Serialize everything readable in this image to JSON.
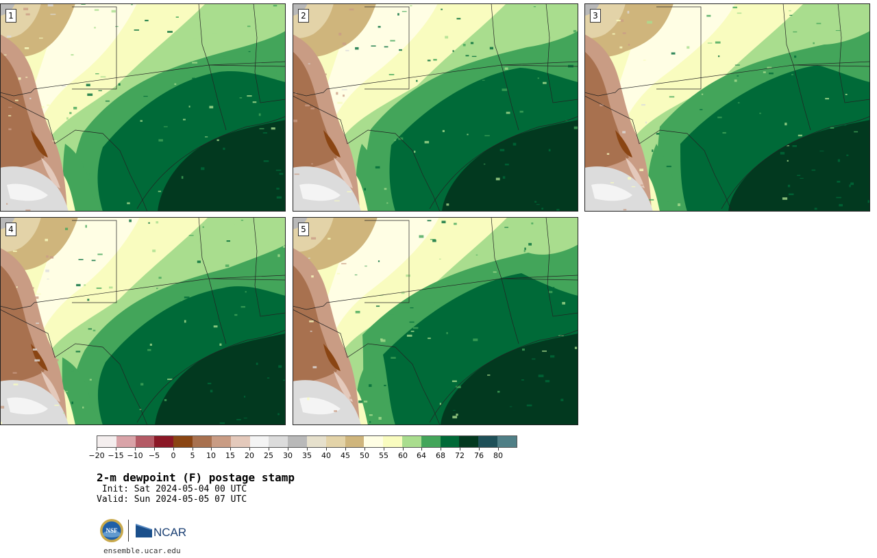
{
  "panels": [
    {
      "label": "1",
      "variant": 0
    },
    {
      "label": "2",
      "variant": 1
    },
    {
      "label": "3",
      "variant": 2
    },
    {
      "label": "4",
      "variant": 3
    },
    {
      "label": "5",
      "variant": 4
    }
  ],
  "colorbar": {
    "colors": [
      "#f4eeee",
      "#d9a3a8",
      "#b45a65",
      "#8b1826",
      "#8a4513",
      "#a8714f",
      "#c99c84",
      "#e4c9bb",
      "#f4f4f4",
      "#dcdcdc",
      "#b9b9b9",
      "#e6e0cc",
      "#e3d3a8",
      "#cfb57c",
      "#fffee4",
      "#f9fcbf",
      "#a9dd8e",
      "#43a55a",
      "#006a38",
      "#02391f",
      "#1e5058",
      "#4f7f86"
    ],
    "labels": [
      "−20",
      "−15",
      "−10",
      "−5",
      "0",
      "5",
      "10",
      "15",
      "20",
      "25",
      "30",
      "35",
      "40",
      "45",
      "50",
      "55",
      "60",
      "64",
      "68",
      "72",
      "76",
      "80"
    ]
  },
  "title": "2-m dewpoint (F) postage stamp",
  "init_line": " Init: Sat 2024-05-04 00 UTC",
  "valid_line": "Valid: Sun 2024-05-05 07 UTC",
  "logos": {
    "nsf": "NSF",
    "ncar": "NCAR"
  },
  "site": "ensemble.ucar.edu"
}
